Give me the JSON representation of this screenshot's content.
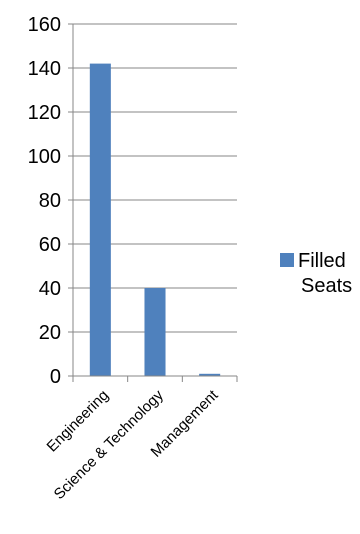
{
  "chart_data": {
    "type": "bar",
    "categories": [
      "Engineering",
      "Science & Technology",
      "Management"
    ],
    "series": [
      {
        "name": "Filled Seats",
        "values": [
          142,
          40,
          1
        ],
        "color": "#4f81bd"
      }
    ],
    "y_ticks": [
      "0",
      "20",
      "40",
      "60",
      "80",
      "100",
      "120",
      "140",
      "160"
    ],
    "ylim": [
      0,
      160
    ],
    "grid": true,
    "legend": {
      "position": "right",
      "lines": [
        "Filled",
        "Seats"
      ]
    }
  }
}
